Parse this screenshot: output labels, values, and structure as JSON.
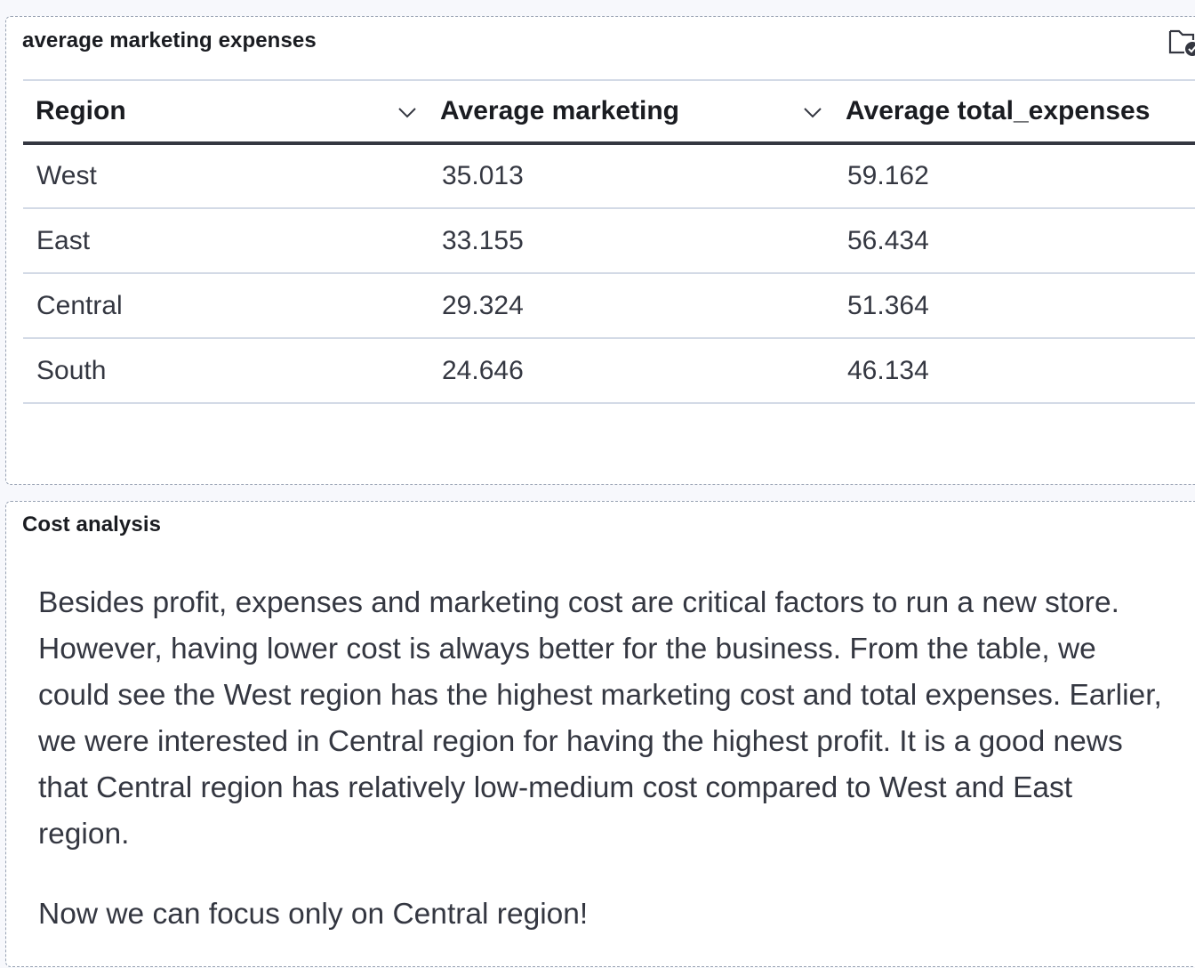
{
  "table_panel": {
    "title": "average marketing expenses",
    "columns": [
      "Region",
      "Average marketing",
      "Average total_expenses"
    ],
    "rows": [
      [
        "West",
        "35.013",
        "59.162"
      ],
      [
        "East",
        "33.155",
        "56.434"
      ],
      [
        "Central",
        "29.324",
        "51.364"
      ],
      [
        "South",
        "24.646",
        "46.134"
      ]
    ],
    "icon": "folder-check-icon",
    "sort_icon": "chevron-down-icon"
  },
  "text_panel": {
    "title": "Cost analysis",
    "paragraphs": [
      "Besides profit, expenses and marketing cost are critical factors to run a new store. However, having lower cost is always better for the business. From the table, we could see the West region has the highest marketing cost and total expenses. Earlier, we were interested in Central region for having the highest profit. It is a good news that Central region has relatively low-medium cost compared to West and East region.",
      "Now we can focus only on Central region!"
    ]
  }
}
